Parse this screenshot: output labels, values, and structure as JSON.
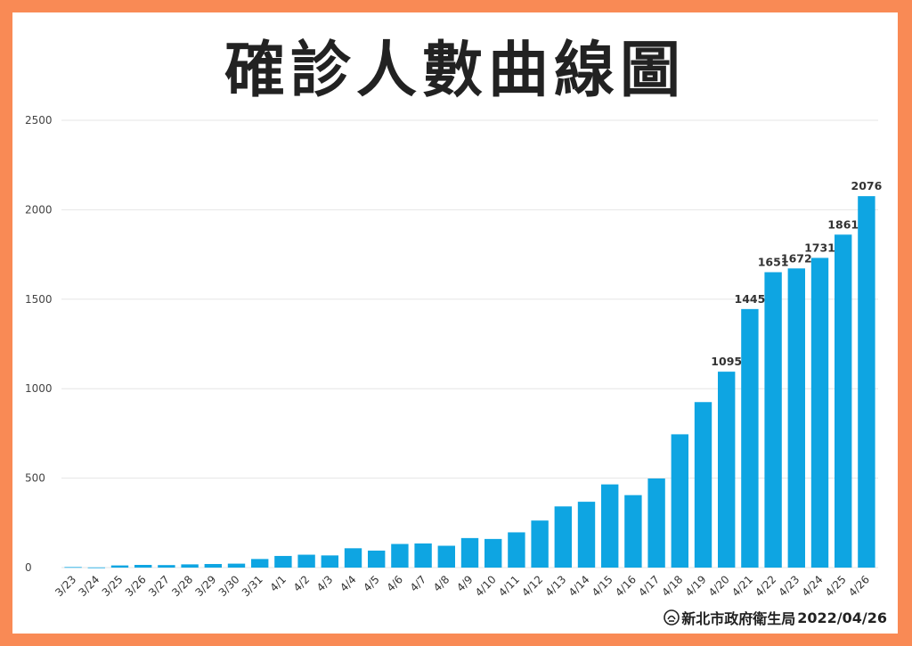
{
  "title": "確診人數曲線圖",
  "footer": {
    "agency": "新北市政府衛生局",
    "date": "2022/04/26"
  },
  "colors": {
    "border": "#f98a55",
    "bar": "#0ea5e2",
    "grid": "#e6e6e6",
    "text": "#222222"
  },
  "chart_data": {
    "type": "bar",
    "title": "確診人數曲線圖",
    "xlabel": "",
    "ylabel": "",
    "ylim": [
      0,
      2500
    ],
    "yticks": [
      0,
      500,
      1000,
      1500,
      2000,
      2500
    ],
    "grid": true,
    "categories": [
      "3/23",
      "3/24",
      "3/25",
      "3/26",
      "3/27",
      "3/28",
      "3/29",
      "3/30",
      "3/31",
      "4/1",
      "4/2",
      "4/3",
      "4/4",
      "4/5",
      "4/6",
      "4/7",
      "4/8",
      "4/9",
      "4/10",
      "4/11",
      "4/12",
      "4/13",
      "4/14",
      "4/15",
      "4/16",
      "4/17",
      "4/18",
      "4/19",
      "4/20",
      "4/21",
      "4/22",
      "4/23",
      "4/24",
      "4/25",
      "4/26"
    ],
    "values": [
      3,
      1,
      12,
      15,
      14,
      18,
      20,
      22,
      48,
      65,
      72,
      68,
      108,
      95,
      132,
      135,
      122,
      165,
      160,
      197,
      263,
      342,
      368,
      465,
      405,
      498,
      745,
      925,
      1095,
      1445,
      1651,
      1672,
      1731,
      1861,
      2076
    ],
    "labeled": [
      "4/20",
      "4/21",
      "4/22",
      "4/23",
      "4/24",
      "4/25",
      "4/26"
    ]
  }
}
